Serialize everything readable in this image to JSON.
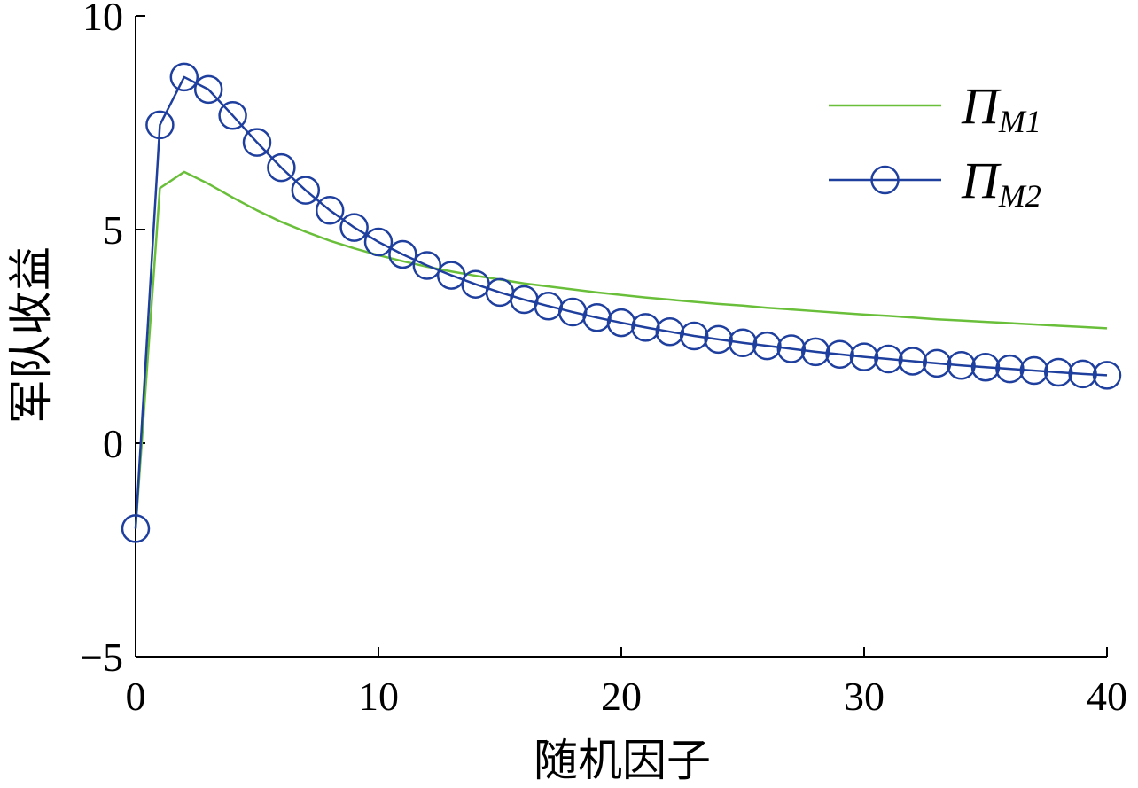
{
  "chart_data": {
    "type": "line",
    "xlabel": "随机因子",
    "ylabel": "军队收益",
    "xlim": [
      0,
      40
    ],
    "ylim": [
      -5,
      10
    ],
    "xticks": [
      0,
      10,
      20,
      30,
      40
    ],
    "yticks": [
      -5,
      0,
      5,
      10
    ],
    "xtick_labels": [
      "0",
      "10",
      "20",
      "30",
      "40"
    ],
    "ytick_labels": [
      "−5",
      "0",
      "5",
      "10"
    ],
    "grid": false,
    "legend_position": "top-right",
    "series": [
      {
        "name": "Π_M1",
        "legend_main": "Π",
        "legend_sub": "M1",
        "color": "#6abf3a",
        "marker": "none",
        "x": [
          0,
          1,
          2,
          3,
          4,
          5,
          6,
          7,
          8,
          9,
          10,
          11,
          12,
          13,
          14,
          15,
          16,
          17,
          18,
          19,
          20,
          21,
          22,
          23,
          24,
          25,
          26,
          27,
          28,
          29,
          30,
          31,
          32,
          33,
          34,
          35,
          36,
          37,
          38,
          39,
          40
        ],
        "y": [
          -2.0,
          5.97,
          6.35,
          6.07,
          5.75,
          5.45,
          5.18,
          4.95,
          4.74,
          4.56,
          4.4,
          4.26,
          4.13,
          4.02,
          3.92,
          3.83,
          3.74,
          3.67,
          3.6,
          3.53,
          3.47,
          3.41,
          3.36,
          3.31,
          3.26,
          3.22,
          3.17,
          3.13,
          3.09,
          3.05,
          3.01,
          2.98,
          2.94,
          2.9,
          2.87,
          2.84,
          2.81,
          2.78,
          2.75,
          2.72,
          2.69
        ]
      },
      {
        "name": "Π_M2",
        "legend_main": "Π",
        "legend_sub": "M2",
        "color": "#1f3f9e",
        "marker": "circle",
        "x": [
          0,
          1,
          2,
          3,
          4,
          5,
          6,
          7,
          8,
          9,
          10,
          11,
          12,
          13,
          14,
          15,
          16,
          17,
          18,
          19,
          20,
          21,
          22,
          23,
          24,
          25,
          26,
          27,
          28,
          29,
          30,
          31,
          32,
          33,
          34,
          35,
          36,
          37,
          38,
          39,
          40
        ],
        "y": [
          -2.0,
          7.45,
          8.57,
          8.28,
          7.67,
          7.04,
          6.45,
          5.92,
          5.45,
          5.05,
          4.71,
          4.42,
          4.16,
          3.93,
          3.72,
          3.53,
          3.36,
          3.21,
          3.07,
          2.94,
          2.82,
          2.71,
          2.61,
          2.51,
          2.43,
          2.35,
          2.28,
          2.21,
          2.14,
          2.08,
          2.02,
          1.97,
          1.92,
          1.87,
          1.82,
          1.78,
          1.74,
          1.7,
          1.66,
          1.62,
          1.59
        ]
      }
    ]
  }
}
